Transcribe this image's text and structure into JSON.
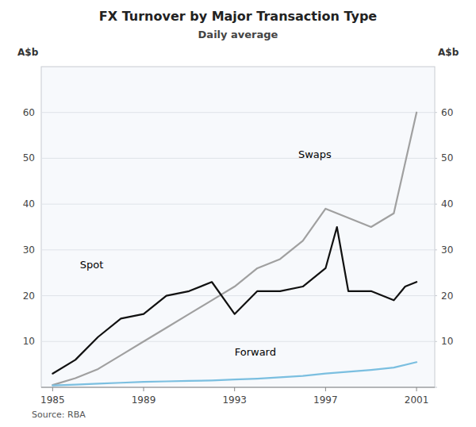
{
  "chart_data": {
    "type": "line",
    "title": "FX Turnover by Major Transaction Type",
    "subtitle": "Daily average",
    "ylabel": "A$b",
    "y2label": "A$b",
    "source": "Source: RBA",
    "xlim": [
      1984.5,
      2001.8
    ],
    "xticks": [
      1985,
      1989,
      1993,
      1997,
      2001
    ],
    "ylim": [
      0,
      70
    ],
    "yticks": [
      {
        "value": 0,
        "label": null
      },
      10,
      20,
      30,
      40,
      50,
      60
    ],
    "y2lim": [
      0,
      70
    ],
    "y2ticks": [
      {
        "value": 0,
        "label": null
      },
      10,
      20,
      30,
      40,
      50,
      60
    ],
    "grid": true,
    "series": [
      {
        "color": "#a0a0a0",
        "x": [
          1985,
          1986,
          1987,
          1988,
          1989,
          1990,
          1991,
          1992,
          1993,
          1994,
          1995,
          1996,
          1997,
          1998,
          1999,
          2000,
          2001
        ],
        "values": [
          0.5,
          2.0,
          4.0,
          7.0,
          10.0,
          13.0,
          16.0,
          19.0,
          22.0,
          26.0,
          28.0,
          32.0,
          39.0,
          37.0,
          35.0,
          38.0,
          60.0
        ]
      },
      {
        "color": "#111111",
        "x": [
          1985,
          1986,
          1987,
          1988,
          1989,
          1990,
          1991,
          1992,
          1993,
          1994,
          1995,
          1996,
          1997,
          1997.5,
          1998,
          1999,
          2000,
          2000.5,
          2001
        ],
        "values": [
          3.0,
          6.0,
          11.0,
          15.0,
          16.0,
          20.0,
          21.0,
          23.0,
          16.0,
          21.0,
          21.0,
          22.0,
          26.0,
          35.0,
          21.0,
          21.0,
          19.0,
          22.0,
          23.0
        ]
      },
      {
        "color": "#7bbfe0",
        "x": [
          1985,
          1986,
          1987,
          1988,
          1989,
          1990,
          1991,
          1992,
          1993,
          1994,
          1995,
          1996,
          1997,
          1998,
          1999,
          2000,
          2001
        ],
        "values": [
          0.4,
          0.6,
          0.8,
          1.0,
          1.2,
          1.3,
          1.4,
          1.5,
          1.7,
          1.9,
          2.2,
          2.5,
          3.0,
          3.4,
          3.8,
          4.3,
          5.5
        ]
      }
    ],
    "annotations": [
      {
        "text": "Swaps",
        "x": 1995.8,
        "y": 50
      },
      {
        "text": "Spot",
        "x": 1986.2,
        "y": 26
      },
      {
        "text": "Forward",
        "x": 1993.0,
        "y": 7.0
      }
    ]
  }
}
